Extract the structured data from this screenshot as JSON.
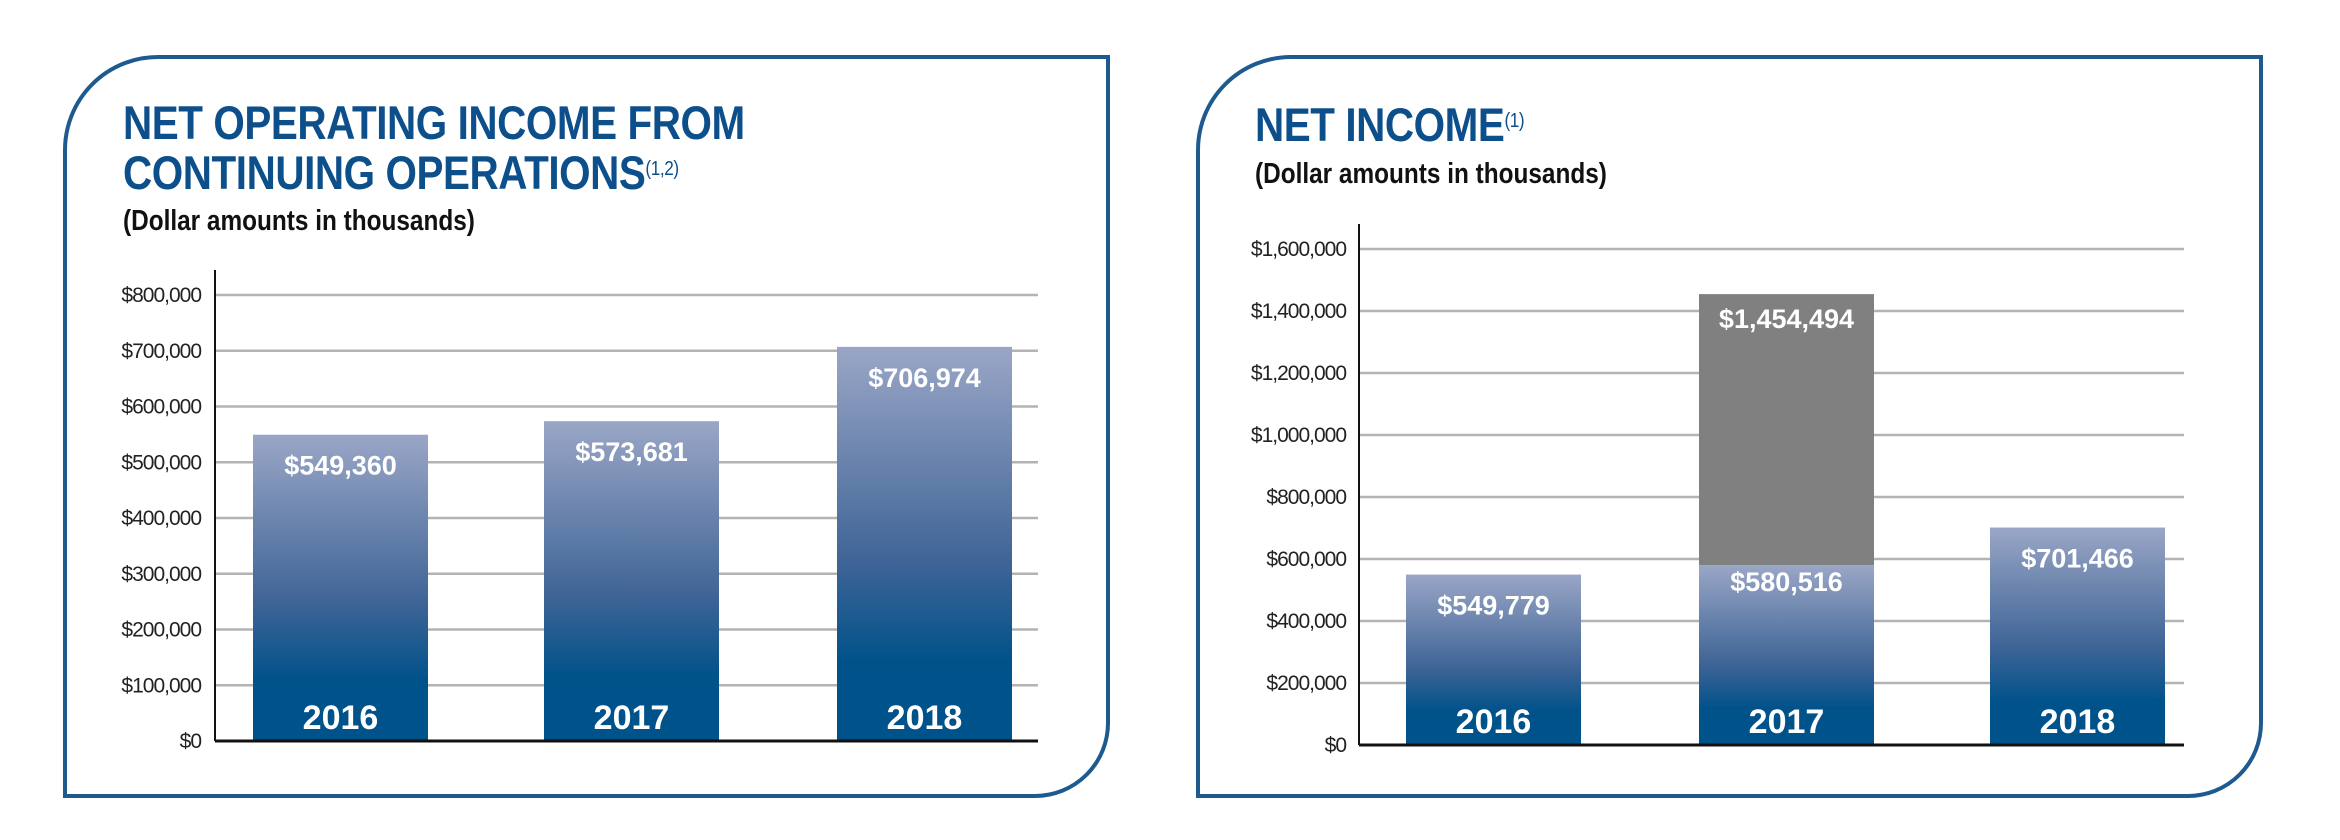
{
  "chart_data": [
    {
      "type": "bar",
      "title": "NET OPERATING INCOME FROM CONTINUING OPERATIONS",
      "title_lines": [
        "NET OPERATING INCOME FROM",
        "CONTINUING OPERATIONS"
      ],
      "title_footnote": "(1,2)",
      "subtitle": "(Dollar amounts in thousands)",
      "categories": [
        "2016",
        "2017",
        "2018"
      ],
      "values": [
        549360,
        573681,
        706974
      ],
      "data_labels": [
        "$549,360",
        "$573,681",
        "$706,974"
      ],
      "ylim": [
        0,
        800000
      ],
      "yticks": [
        0,
        100000,
        200000,
        300000,
        400000,
        500000,
        600000,
        700000,
        800000
      ],
      "ytick_labels": [
        "$0",
        "$100,000",
        "$200,000",
        "$300,000",
        "$400,000",
        "$500,000",
        "$600,000",
        "$700,000",
        "$800,000"
      ],
      "grid": true
    },
    {
      "type": "bar",
      "title": "NET INCOME",
      "title_footnote": "(1)",
      "subtitle": "(Dollar amounts in thousands)",
      "categories": [
        "2016",
        "2017",
        "2018"
      ],
      "values": [
        549779,
        580516,
        701466
      ],
      "data_labels": [
        "$549,779",
        "$580,516",
        "$701,466"
      ],
      "stacked_extra": {
        "category": "2017",
        "total": 1454494,
        "label": "$1,454,494"
      },
      "ylim": [
        0,
        1600000
      ],
      "yticks": [
        0,
        200000,
        400000,
        600000,
        800000,
        1000000,
        1200000,
        1400000,
        1600000
      ],
      "ytick_labels": [
        "$0",
        "$200,000",
        "$400,000",
        "$600,000",
        "$800,000",
        "$1,000,000",
        "$1,200,000",
        "$1,400,000",
        "$1,600,000"
      ],
      "grid": true
    }
  ],
  "colors": {
    "border": "#1d5a8f",
    "title": "#0d4f8b",
    "bar_top": "#9aa6c6",
    "bar_bottom": "#00528a",
    "extra": "#808080",
    "grid": "#b3b3b3"
  }
}
